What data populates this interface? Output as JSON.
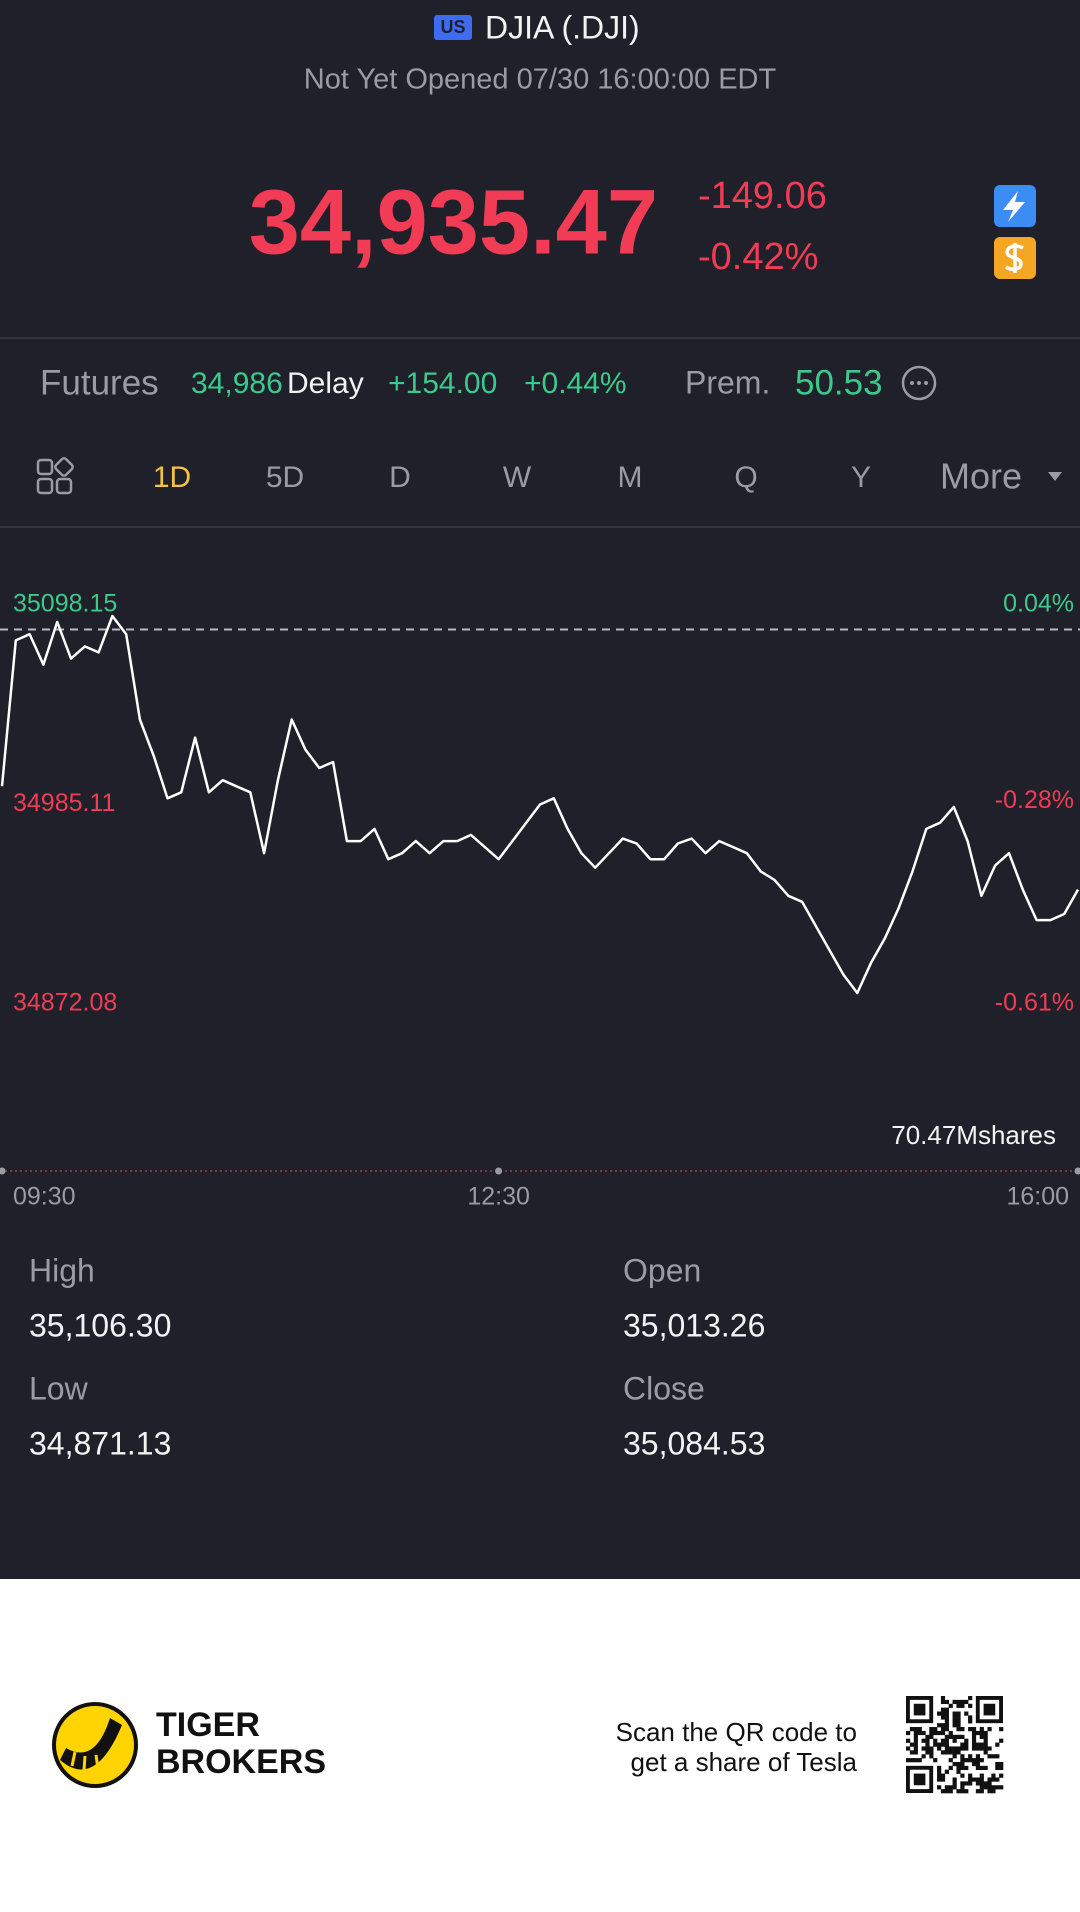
{
  "header": {
    "badge": "US",
    "title": "DJIA (.DJI)",
    "status": "Not Yet Opened 07/30 16:00:00 EDT"
  },
  "quote": {
    "price": "34,935.47",
    "change": "-149.06",
    "change_percent": "-0.42%"
  },
  "futures": {
    "label": "Futures",
    "price": "34,986",
    "delay": "Delay",
    "change": "+154.00",
    "change_percent": "+0.44%",
    "premium_label": "Prem.",
    "premium": "50.53"
  },
  "tabs": [
    "1D",
    "5D",
    "D",
    "W",
    "M",
    "Q",
    "Y",
    "More"
  ],
  "chart_data": {
    "type": "line",
    "color": "#ffffff",
    "x": [
      "09:30",
      "09:35",
      "09:40",
      "09:45",
      "09:50",
      "09:55",
      "10:00",
      "10:05",
      "10:10",
      "10:15",
      "10:20",
      "10:25",
      "10:30",
      "10:35",
      "10:40",
      "10:45",
      "10:50",
      "10:55",
      "11:00",
      "11:05",
      "11:10",
      "11:15",
      "11:20",
      "11:25",
      "11:30",
      "11:35",
      "11:40",
      "11:45",
      "11:50",
      "11:55",
      "12:00",
      "12:05",
      "12:10",
      "12:15",
      "12:20",
      "12:25",
      "12:30",
      "12:35",
      "12:40",
      "12:45",
      "12:50",
      "12:55",
      "13:00",
      "13:05",
      "13:10",
      "13:15",
      "13:20",
      "13:25",
      "13:30",
      "13:35",
      "13:40",
      "13:45",
      "13:50",
      "13:55",
      "14:00",
      "14:05",
      "14:10",
      "14:15",
      "14:20",
      "14:25",
      "14:30",
      "14:35",
      "14:40",
      "14:45",
      "14:50",
      "14:55",
      "15:00",
      "15:05",
      "15:10",
      "15:15",
      "15:20",
      "15:25",
      "15:30",
      "15:35",
      "15:40",
      "15:45",
      "15:50",
      "15:55",
      "16:00"
    ],
    "values": [
      34995.4,
      35078.1,
      35081.6,
      35064.4,
      35088.5,
      35067.8,
      35074.7,
      35071.3,
      35091.9,
      35081.6,
      35033.3,
      35012.7,
      34988.6,
      34992.0,
      35023.0,
      34992.0,
      34998.9,
      34995.4,
      34992.0,
      34957.5,
      34998.9,
      35033.3,
      35016.1,
      35005.8,
      35009.2,
      34964.4,
      34964.4,
      34971.3,
      34954.1,
      34957.5,
      34964.4,
      34957.5,
      34964.4,
      34964.4,
      34967.9,
      34961.0,
      34954.1,
      34964.4,
      34974.8,
      34985.1,
      34988.6,
      34971.3,
      34957.5,
      34949.3,
      34957.5,
      34965.8,
      34963.0,
      34954.1,
      34954.1,
      34963.0,
      34965.8,
      34957.5,
      34964.4,
      34961.0,
      34957.5,
      34947.2,
      34942.4,
      34933.4,
      34930.0,
      34916.2,
      34902.4,
      34888.6,
      34878.3,
      34895.5,
      34909.3,
      34926.5,
      34947.2,
      34971.3,
      34974.8,
      34983.7,
      34964.4,
      34933.4,
      34950.6,
      34957.5,
      34936.9,
      34919.6,
      34919.6,
      34923.1,
      34936.9
    ],
    "ylim": [
      34872.08,
      35098.15
    ],
    "yticks": [
      35098.15,
      34985.11,
      34872.08
    ],
    "y2lim": [
      -0.61,
      0.04
    ],
    "y2ticks": [
      {
        "value": 0.04,
        "label": "0.04%"
      },
      {
        "value": -0.28,
        "label": "-0.28%"
      },
      {
        "value": -0.61,
        "label": "-0.61%"
      }
    ],
    "xticks": [
      "09:30",
      "12:30",
      "16:00"
    ],
    "volume_label": "70.47Mshares"
  },
  "stats": [
    {
      "label": "High",
      "value": "35,106.30"
    },
    {
      "label": "Open",
      "value": "35,013.26"
    },
    {
      "label": "Low",
      "value": "34,871.13"
    },
    {
      "label": "Close",
      "value": "35,084.53"
    }
  ],
  "footer": {
    "brand": [
      "TIGER",
      "BROKERS"
    ],
    "promo": [
      "Scan the QR code to",
      "get a share of Tesla"
    ]
  }
}
